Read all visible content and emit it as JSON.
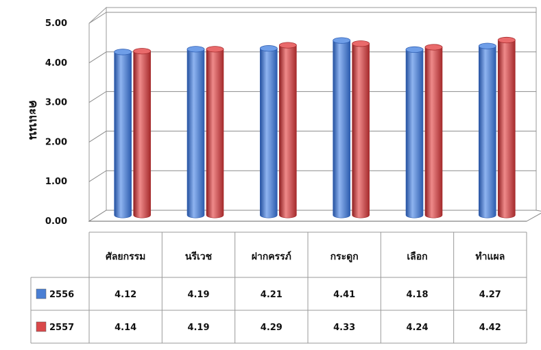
{
  "chart_data": {
    "type": "bar",
    "style": "3d-cylinder-with-data-table",
    "title": "",
    "xlabel": "",
    "ylabel": "คะแนน",
    "ylim": [
      0,
      5
    ],
    "yticks": [
      "0.00",
      "1.00",
      "2.00",
      "3.00",
      "4.00",
      "5.00"
    ],
    "grid": true,
    "legend": "data-table-left",
    "categories": [
      "ศัลยกรรม",
      "นรีเวช",
      "ฝากครรภ์",
      "กระดูก",
      "เลือก",
      "ทำแผล"
    ],
    "series": [
      {
        "name": "2556",
        "color": "#4a7fd4",
        "values": [
          4.12,
          4.19,
          4.21,
          4.41,
          4.18,
          4.27
        ],
        "labels": [
          "4.12",
          "4.19",
          "4.21",
          "4.41",
          "4.18",
          "4.27"
        ]
      },
      {
        "name": "2557",
        "color": "#d9484a",
        "values": [
          4.14,
          4.19,
          4.29,
          4.33,
          4.24,
          4.42
        ],
        "labels": [
          "4.14",
          "4.19",
          "4.29",
          "4.33",
          "4.24",
          "4.42"
        ]
      }
    ]
  }
}
